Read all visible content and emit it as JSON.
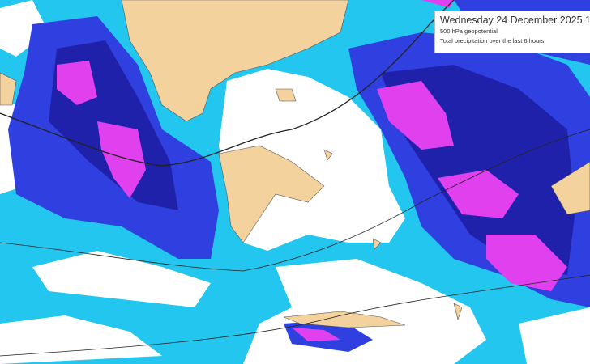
{
  "header": {
    "title": "Wednesday 24 December 2025 1",
    "layer1": "500 hPa geopotential",
    "layer2": "Total precipitation over the last 6 hours"
  },
  "colors": {
    "light_precip": "#22c6ee",
    "moderate_precip": "#2f3fe0",
    "heavy_precip": "#1c1a9c",
    "very_heavy_precip": "#e040ee",
    "no_precip": "#ffffff",
    "land": "#f4d29e"
  }
}
